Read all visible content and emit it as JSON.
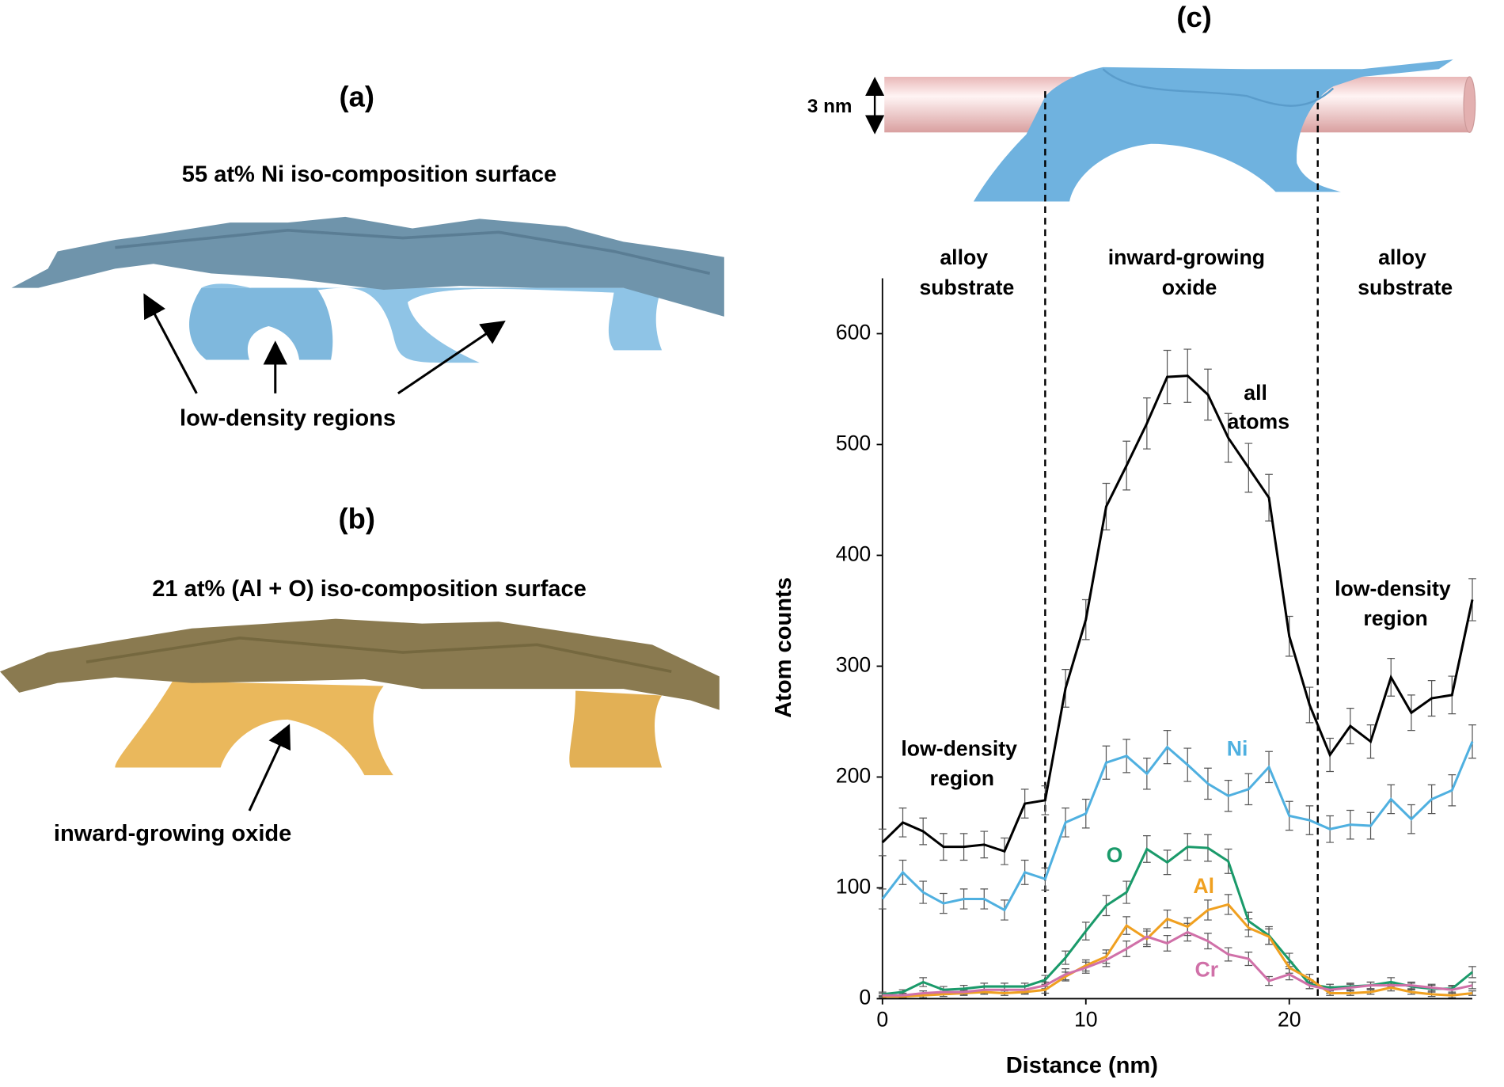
{
  "panels": {
    "a": {
      "label": "(a)",
      "title": "55 at% Ni iso-composition surface",
      "annotation": "low-density regions"
    },
    "b": {
      "label": "(b)",
      "title": "21 at% (Al + O) iso-composition surface",
      "annotation": "inward-growing oxide"
    },
    "c": {
      "label": "(c)",
      "scale_bar": "3 nm"
    }
  },
  "chart_data": {
    "type": "line",
    "xlabel": "Distance (nm)",
    "ylabel": "Atom counts",
    "x": [
      0,
      1,
      2,
      3,
      4,
      5,
      6,
      7,
      8,
      9,
      10,
      11,
      12,
      13,
      14,
      15,
      16,
      17,
      18,
      19,
      20,
      21,
      22,
      23,
      24,
      25,
      26,
      27,
      28,
      29
    ],
    "xlim": [
      0,
      29
    ],
    "ylim": [
      0,
      650
    ],
    "xticks": [
      0,
      10,
      20
    ],
    "yticks": [
      0,
      100,
      200,
      300,
      400,
      500,
      600
    ],
    "dividers": [
      8,
      21.4
    ],
    "regions": [
      "alloy substrate",
      "inward-growing oxide",
      "alloy substrate"
    ],
    "annotations": [
      "low-density region",
      "low-density region"
    ],
    "series": [
      {
        "name": "all atoms",
        "color": "#000000",
        "values": [
          141,
          159,
          151,
          137,
          137,
          139,
          133,
          176,
          179,
          280,
          342,
          444,
          481,
          519,
          561,
          562,
          545,
          506,
          479,
          452,
          327,
          265,
          220,
          246,
          232,
          290,
          258,
          271,
          274,
          360
        ],
        "errors": [
          12,
          13,
          12,
          12,
          12,
          12,
          12,
          13,
          13,
          17,
          18,
          21,
          22,
          23,
          24,
          24,
          23,
          22,
          22,
          21,
          18,
          16,
          15,
          16,
          15,
          17,
          16,
          16,
          17,
          19
        ]
      },
      {
        "name": "Ni",
        "color": "#4fb0e0",
        "values": [
          90,
          114,
          96,
          86,
          90,
          90,
          80,
          114,
          108,
          159,
          167,
          213,
          219,
          203,
          227,
          211,
          194,
          183,
          189,
          209,
          165,
          161,
          153,
          157,
          156,
          180,
          162,
          180,
          188,
          232
        ],
        "errors": [
          9,
          11,
          10,
          9,
          9,
          9,
          9,
          11,
          10,
          13,
          13,
          15,
          15,
          14,
          15,
          15,
          14,
          14,
          14,
          14,
          13,
          13,
          12,
          13,
          12,
          13,
          13,
          13,
          14,
          15
        ]
      },
      {
        "name": "O",
        "color": "#1a9a6a",
        "values": [
          4,
          6,
          15,
          8,
          9,
          11,
          11,
          11,
          17,
          37,
          61,
          84,
          96,
          135,
          123,
          137,
          136,
          124,
          70,
          57,
          35,
          13,
          10,
          11,
          12,
          15,
          11,
          9,
          9,
          24
        ],
        "errors": [
          2,
          2,
          4,
          3,
          3,
          3,
          3,
          3,
          4,
          6,
          8,
          9,
          10,
          12,
          11,
          12,
          12,
          11,
          8,
          8,
          6,
          4,
          3,
          3,
          3,
          4,
          3,
          3,
          3,
          5
        ]
      },
      {
        "name": "Al",
        "color": "#f0a020",
        "values": [
          2,
          2,
          3,
          4,
          5,
          6,
          5,
          6,
          8,
          20,
          30,
          38,
          66,
          54,
          72,
          65,
          80,
          85,
          64,
          56,
          28,
          18,
          5,
          5,
          6,
          10,
          6,
          4,
          3,
          5
        ],
        "errors": [
          1,
          1,
          2,
          2,
          2,
          2,
          2,
          2,
          3,
          4,
          5,
          6,
          8,
          7,
          8,
          8,
          9,
          9,
          8,
          7,
          5,
          4,
          2,
          2,
          2,
          3,
          2,
          2,
          2,
          2
        ]
      },
      {
        "name": "Cr",
        "color": "#d070a8",
        "values": [
          3,
          3,
          5,
          6,
          6,
          8,
          8,
          8,
          12,
          22,
          28,
          35,
          45,
          56,
          50,
          60,
          52,
          40,
          36,
          16,
          22,
          12,
          8,
          10,
          12,
          12,
          12,
          10,
          8,
          12
        ],
        "errors": [
          2,
          2,
          2,
          2,
          2,
          3,
          3,
          3,
          3,
          5,
          5,
          6,
          7,
          7,
          7,
          8,
          7,
          6,
          6,
          4,
          5,
          3,
          3,
          3,
          3,
          3,
          3,
          3,
          3,
          3
        ]
      }
    ]
  }
}
